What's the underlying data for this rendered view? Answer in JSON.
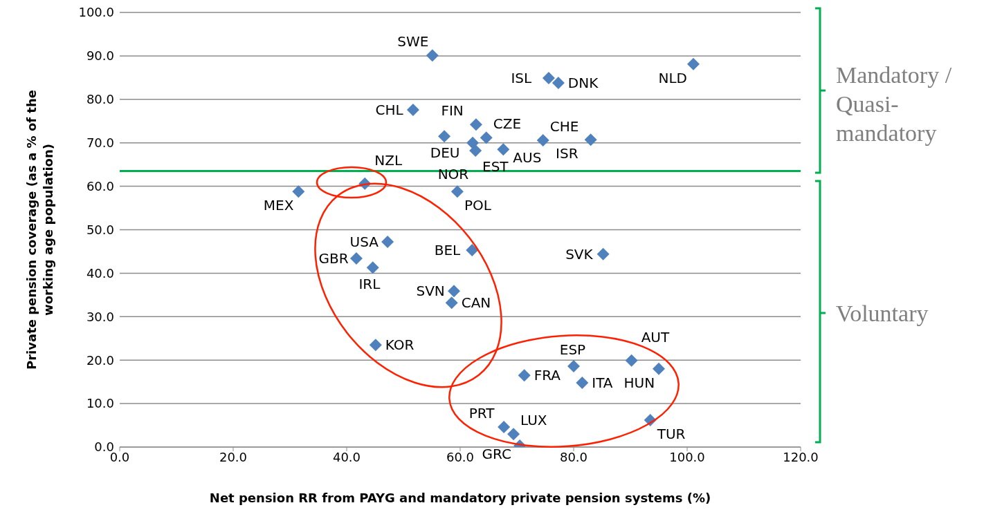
{
  "chart_data": {
    "type": "scatter",
    "xlabel": "Net pension RR from PAYG and mandatory private pension systems (%)",
    "ylabel": "Private pension coverage (as a % of the working age population)",
    "x": [
      55.1,
      101.1,
      75.6,
      77.3,
      51.7,
      62.8,
      57.2,
      64.6,
      62.2,
      62.7,
      67.6,
      74.6,
      83.0,
      31.5,
      43.2,
      59.5,
      47.2,
      62.1,
      41.7,
      44.6,
      58.9,
      58.5,
      45.1,
      85.2,
      71.3,
      80.0,
      81.5,
      90.2,
      95.0,
      93.5,
      67.7,
      69.4,
      70.5
    ],
    "values": [
      90.1,
      88.1,
      84.9,
      83.8,
      77.6,
      74.2,
      71.5,
      71.2,
      70.0,
      68.2,
      68.5,
      70.6,
      70.7,
      58.8,
      60.6,
      58.8,
      47.2,
      45.3,
      43.4,
      41.3,
      35.9,
      33.2,
      23.5,
      44.4,
      16.5,
      18.6,
      14.8,
      19.9,
      18.0,
      6.2,
      4.6,
      3.0,
      0.3
    ],
    "value_labels": [
      "SWE",
      "NLD",
      "ISL",
      "DNK",
      "CHL",
      "FIN",
      "DEU",
      "CZE",
      "EST",
      "NOR",
      "AUS",
      "CHE",
      "ISR",
      "MEX",
      "NZL",
      "POL",
      "USA",
      "BEL",
      "GBR",
      "IRL",
      "SVN",
      "CAN",
      "KOR",
      "SVK",
      "FRA",
      "ESP",
      "ITA",
      "AUT",
      "HUN",
      "TUR",
      "PRT",
      "LUX",
      "GRC"
    ],
    "color": "#4f81bd",
    "marker": "diamond",
    "xlim": [
      0,
      120
    ],
    "xticks": [
      {
        "value": 0,
        "label": "0.0"
      },
      {
        "value": 20,
        "label": "20.0"
      },
      {
        "value": 40,
        "label": "40.0"
      },
      {
        "value": 60,
        "label": "60.0"
      },
      {
        "value": 80,
        "label": "80.0"
      },
      {
        "value": 100,
        "label": "100.0"
      },
      {
        "value": 120,
        "label": "120.0"
      }
    ],
    "ylim": [
      0,
      100
    ],
    "yticks": [
      {
        "value": 0,
        "label": "0.0"
      },
      {
        "value": 10,
        "label": "10.0"
      },
      {
        "value": 20,
        "label": "20.0"
      },
      {
        "value": 30,
        "label": "30.0"
      },
      {
        "value": 40,
        "label": "40.0"
      },
      {
        "value": 50,
        "label": "50.0"
      },
      {
        "value": 60,
        "label": "60.0"
      },
      {
        "value": 70,
        "label": "70.0"
      },
      {
        "value": 80,
        "label": "80.0"
      },
      {
        "value": 90,
        "label": "90.0"
      },
      {
        "value": 100,
        "label": "100.0"
      }
    ],
    "grid": "y",
    "legend": false,
    "ref_lines": [
      {
        "axis": "y",
        "value": 63.5,
        "color": "#00b050"
      }
    ],
    "annotations": [
      "Mandatory / Quasi-mandatory",
      "Voluntary"
    ]
  }
}
